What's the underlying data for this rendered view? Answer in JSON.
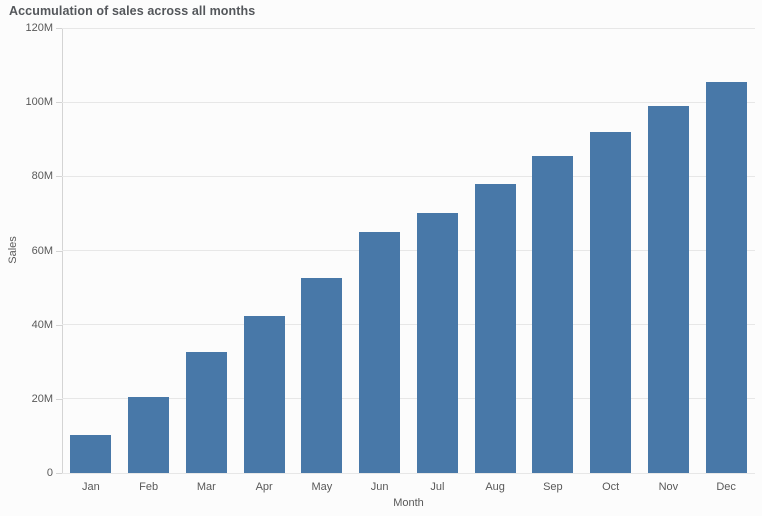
{
  "title": "Accumulation of sales across all months",
  "colors": {
    "bar": "#4878a8",
    "gridline": "#e7e7e7",
    "axis_line": "#d4d4d4",
    "axis_label": "#595959",
    "title_text": "#54575b",
    "background": "#fcfcfc"
  },
  "chart_data": {
    "type": "bar",
    "title": "Accumulation of sales across all months",
    "xlabel": "Month",
    "ylabel": "Sales",
    "categories": [
      "Jan",
      "Feb",
      "Mar",
      "Apr",
      "May",
      "Jun",
      "Jul",
      "Aug",
      "Sep",
      "Oct",
      "Nov",
      "Dec"
    ],
    "values_millions": [
      10.3,
      20.6,
      32.6,
      42.3,
      52.7,
      65.0,
      70.2,
      77.9,
      85.6,
      91.9,
      99.0,
      105.4
    ],
    "ylim_millions": [
      0,
      120
    ],
    "yticks": [
      {
        "label": "0",
        "value": 0
      },
      {
        "label": "20M",
        "value": 20
      },
      {
        "label": "40M",
        "value": 40
      },
      {
        "label": "60M",
        "value": 60
      },
      {
        "label": "80M",
        "value": 80
      },
      {
        "label": "100M",
        "value": 100
      },
      {
        "label": "120M",
        "value": 120
      }
    ],
    "grid": true,
    "legend": false,
    "bar_color": "#4878a8"
  }
}
